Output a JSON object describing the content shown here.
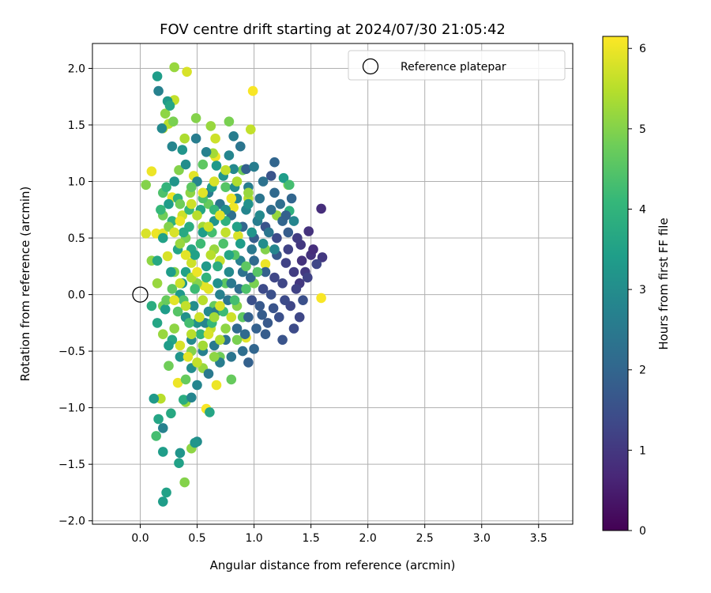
{
  "chart_data": {
    "type": "scatter",
    "title": "FOV centre drift starting at 2024/07/30 21:05:42",
    "xlabel": "Angular distance from reference (arcmin)",
    "ylabel": "Rotation from reference (arcmin)",
    "xlim": [
      -0.42,
      3.8
    ],
    "ylim": [
      -2.03,
      2.22
    ],
    "xticks": [
      0.0,
      0.5,
      1.0,
      1.5,
      2.0,
      2.5,
      3.0,
      3.5
    ],
    "xtick_labels": [
      "0.0",
      "0.5",
      "1.0",
      "1.5",
      "2.0",
      "2.5",
      "3.0",
      "3.5"
    ],
    "yticks": [
      -2.0,
      -1.5,
      -1.0,
      -0.5,
      0.0,
      0.5,
      1.0,
      1.5,
      2.0
    ],
    "ytick_labels": [
      "−2.0",
      "−1.5",
      "−1.0",
      "−0.5",
      "0.0",
      "0.5",
      "1.0",
      "1.5",
      "2.0"
    ],
    "grid": true,
    "legend": {
      "position": "top-right",
      "entries": [
        "Reference platepar"
      ]
    },
    "reference_point": {
      "x": 0.0,
      "y": 0.0
    },
    "colorbar": {
      "label": "Hours from first FF file",
      "range": [
        0,
        6.15
      ],
      "ticks": [
        0,
        1,
        2,
        3,
        4,
        5,
        6
      ],
      "tick_labels": [
        "0",
        "1",
        "2",
        "3",
        "4",
        "5",
        "6"
      ],
      "colormap": "viridis"
    },
    "points": [
      [
        1.59,
        -0.03,
        6.1
      ],
      [
        0.99,
        1.8,
        6.1
      ],
      [
        0.1,
        1.09,
        6.0
      ],
      [
        0.05,
        0.54,
        5.8
      ],
      [
        0.14,
        0.54,
        6.0
      ],
      [
        0.2,
        0.54,
        5.9
      ],
      [
        0.58,
        -1.01,
        6.1
      ],
      [
        0.67,
        -0.8,
        6.0
      ],
      [
        0.33,
        -0.78,
        6.0
      ],
      [
        0.93,
        -0.38,
        5.9
      ],
      [
        1.1,
        0.27,
        6.0
      ],
      [
        0.4,
        -0.2,
        6.0
      ],
      [
        0.56,
        0.08,
        5.9
      ],
      [
        0.7,
        0.3,
        5.6
      ],
      [
        0.86,
        0.52,
        5.8
      ],
      [
        0.82,
        0.77,
        6.0
      ],
      [
        0.28,
        0.86,
        6.0
      ],
      [
        0.47,
        1.05,
        5.9
      ],
      [
        0.66,
        1.22,
        6.0
      ],
      [
        0.37,
        0.7,
        5.7
      ],
      [
        0.24,
        0.34,
        5.8
      ],
      [
        0.45,
        0.28,
        5.7
      ],
      [
        0.75,
        0.55,
        5.6
      ],
      [
        0.95,
        0.85,
        5.5
      ],
      [
        0.35,
        -0.45,
        5.8
      ],
      [
        0.62,
        -0.3,
        5.6
      ],
      [
        0.2,
        1.47,
        5.6
      ],
      [
        0.25,
        1.51,
        5.5
      ],
      [
        0.41,
        1.97,
        5.8
      ],
      [
        0.3,
        1.72,
        5.6
      ],
      [
        0.3,
        2.01,
        5.2
      ],
      [
        0.22,
        1.6,
        5.1
      ],
      [
        0.29,
        1.53,
        4.9
      ],
      [
        0.49,
        1.56,
        5.0
      ],
      [
        0.62,
        1.49,
        5.2
      ],
      [
        0.66,
        1.38,
        5.7
      ],
      [
        0.97,
        1.46,
        5.6
      ],
      [
        0.78,
        1.53,
        4.9
      ],
      [
        0.64,
        1.25,
        5.3
      ],
      [
        0.39,
        1.38,
        5.4
      ],
      [
        0.34,
        1.1,
        5.0
      ],
      [
        0.44,
        0.9,
        5.1
      ],
      [
        0.55,
        0.6,
        5.3
      ],
      [
        0.65,
        0.4,
        5.2
      ],
      [
        0.5,
        0.1,
        5.0
      ],
      [
        0.3,
        0.2,
        5.0
      ],
      [
        0.15,
        0.1,
        5.2
      ],
      [
        0.2,
        -0.1,
        4.9
      ],
      [
        0.3,
        -0.3,
        5.1
      ],
      [
        0.45,
        -0.5,
        5.0
      ],
      [
        0.55,
        -0.65,
        5.2
      ],
      [
        0.7,
        -0.55,
        4.8
      ],
      [
        0.8,
        -0.75,
        4.7
      ],
      [
        0.2,
        -0.35,
        5.2
      ],
      [
        0.4,
        -0.95,
        5.2
      ],
      [
        0.18,
        -0.92,
        5.5
      ],
      [
        0.25,
        -0.63,
        4.8
      ],
      [
        0.39,
        -1.66,
        5.0
      ],
      [
        0.45,
        -1.36,
        5.1
      ],
      [
        0.85,
        -0.1,
        5.0
      ],
      [
        1.0,
        0.1,
        4.9
      ],
      [
        1.1,
        0.4,
        5.0
      ],
      [
        1.2,
        0.7,
        5.2
      ],
      [
        1.3,
        0.97,
        4.9
      ],
      [
        0.9,
        1.1,
        4.8
      ],
      [
        0.6,
        0.8,
        4.7
      ],
      [
        0.4,
        0.5,
        4.9
      ],
      [
        0.2,
        0.7,
        4.8
      ],
      [
        0.1,
        0.3,
        5.1
      ],
      [
        0.65,
        -0.1,
        4.7
      ],
      [
        0.75,
        0.1,
        4.6
      ],
      [
        0.05,
        0.97,
        5.0
      ],
      [
        0.9,
        -0.2,
        4.6
      ],
      [
        0.4,
        -0.75,
        4.7
      ],
      [
        0.75,
        0.95,
        4.5
      ],
      [
        0.55,
        1.15,
        4.6
      ],
      [
        0.2,
        0.9,
        4.4
      ],
      [
        0.28,
        -0.4,
        3.6
      ],
      [
        0.22,
        -0.13,
        3.4
      ],
      [
        0.5,
        -1.3,
        3.0
      ],
      [
        0.35,
        -1.4,
        3.2
      ],
      [
        0.2,
        -1.39,
        3.4
      ],
      [
        0.2,
        -1.83,
        3.4
      ],
      [
        0.23,
        -1.75,
        3.5
      ],
      [
        0.16,
        -1.1,
        3.6
      ],
      [
        0.27,
        -1.05,
        3.7
      ],
      [
        0.38,
        -0.93,
        3.8
      ],
      [
        0.61,
        -1.04,
        3.6
      ],
      [
        0.12,
        -0.92,
        3.3
      ],
      [
        0.14,
        -1.25,
        4.3
      ],
      [
        0.34,
        -1.49,
        3.5
      ],
      [
        0.48,
        -1.31,
        3.2
      ],
      [
        0.45,
        -0.91,
        2.8
      ],
      [
        0.2,
        -1.18,
        2.7
      ],
      [
        0.24,
        1.71,
        3.3
      ],
      [
        0.16,
        1.8,
        2.7
      ],
      [
        0.19,
        1.47,
        2.9
      ],
      [
        0.26,
        1.67,
        3.6
      ],
      [
        0.28,
        1.31,
        2.8
      ],
      [
        0.15,
        1.93,
        3.4
      ],
      [
        0.37,
        1.28,
        3.2
      ],
      [
        0.49,
        1.38,
        2.6
      ],
      [
        0.58,
        1.26,
        2.7
      ],
      [
        0.67,
        1.14,
        3.3
      ],
      [
        0.78,
        1.23,
        2.8
      ],
      [
        0.82,
        1.11,
        2.9
      ],
      [
        0.88,
        1.31,
        2.4
      ],
      [
        0.82,
        1.4,
        2.6
      ],
      [
        0.93,
        1.11,
        1.9
      ],
      [
        1.0,
        1.13,
        2.6
      ],
      [
        1.18,
        1.17,
        2.0
      ],
      [
        1.15,
        1.05,
        1.6
      ],
      [
        1.26,
        1.03,
        3.4
      ],
      [
        1.31,
        0.97,
        4.3
      ],
      [
        1.31,
        0.74,
        3.9
      ],
      [
        1.35,
        0.65,
        2.8
      ],
      [
        1.41,
        0.44,
        1.0
      ],
      [
        1.5,
        0.35,
        0.9
      ],
      [
        1.6,
        0.33,
        1.0
      ],
      [
        1.55,
        0.27,
        1.3
      ],
      [
        1.59,
        0.76,
        0.8
      ],
      [
        1.48,
        0.56,
        0.9
      ],
      [
        1.4,
        0.1,
        1.0
      ],
      [
        1.43,
        -0.05,
        1.5
      ],
      [
        1.4,
        -0.2,
        1.3
      ],
      [
        1.35,
        -0.3,
        1.4
      ],
      [
        1.25,
        -0.4,
        1.6
      ],
      [
        1.1,
        -0.35,
        1.8
      ],
      [
        1.0,
        -0.48,
        2.0
      ],
      [
        0.95,
        -0.6,
        1.9
      ],
      [
        0.9,
        -0.5,
        2.2
      ],
      [
        0.8,
        -0.55,
        2.4
      ],
      [
        0.7,
        -0.6,
        2.6
      ],
      [
        0.6,
        -0.7,
        2.5
      ],
      [
        0.5,
        -0.8,
        2.8
      ],
      [
        0.45,
        -0.65,
        3.0
      ],
      [
        0.35,
        -0.55,
        3.2
      ],
      [
        0.25,
        -0.45,
        3.4
      ],
      [
        0.15,
        -0.25,
        3.6
      ],
      [
        0.1,
        -0.1,
        3.8
      ],
      [
        0.15,
        0.3,
        3.7
      ],
      [
        0.2,
        0.5,
        3.5
      ],
      [
        0.25,
        0.8,
        3.4
      ],
      [
        0.3,
        1.0,
        3.2
      ],
      [
        0.4,
        1.15,
        3.0
      ],
      [
        0.5,
        1.0,
        2.8
      ],
      [
        0.6,
        0.9,
        2.6
      ],
      [
        0.7,
        0.8,
        2.4
      ],
      [
        0.8,
        0.7,
        2.2
      ],
      [
        0.9,
        0.6,
        2.0
      ],
      [
        1.0,
        0.5,
        1.8
      ],
      [
        1.1,
        0.6,
        1.6
      ],
      [
        1.2,
        0.5,
        1.4
      ],
      [
        1.3,
        0.4,
        1.2
      ],
      [
        1.35,
        0.2,
        1.1
      ],
      [
        1.25,
        0.1,
        1.3
      ],
      [
        1.15,
        0.0,
        1.5
      ],
      [
        1.05,
        -0.1,
        1.7
      ],
      [
        0.95,
        -0.2,
        1.9
      ],
      [
        0.85,
        -0.3,
        2.1
      ],
      [
        0.75,
        -0.4,
        2.3
      ],
      [
        0.65,
        -0.45,
        2.5
      ],
      [
        0.55,
        -0.5,
        2.7
      ],
      [
        0.45,
        -0.4,
        2.9
      ],
      [
        0.4,
        -0.2,
        3.1
      ],
      [
        0.35,
        0.0,
        3.3
      ],
      [
        0.4,
        0.2,
        3.5
      ],
      [
        0.45,
        0.4,
        3.6
      ],
      [
        0.55,
        0.55,
        3.4
      ],
      [
        0.65,
        0.65,
        3.2
      ],
      [
        0.75,
        0.75,
        3.0
      ],
      [
        0.85,
        0.85,
        2.8
      ],
      [
        0.95,
        0.95,
        2.6
      ],
      [
        1.05,
        0.85,
        2.4
      ],
      [
        1.15,
        0.75,
        2.2
      ],
      [
        1.25,
        0.65,
        2.0
      ],
      [
        1.3,
        0.55,
        1.8
      ],
      [
        1.2,
        0.35,
        1.7
      ],
      [
        1.1,
        0.2,
        1.9
      ],
      [
        1.0,
        0.3,
        2.1
      ],
      [
        0.9,
        0.2,
        2.3
      ],
      [
        0.8,
        0.1,
        2.5
      ],
      [
        0.7,
        0.0,
        2.7
      ],
      [
        0.6,
        -0.15,
        2.9
      ],
      [
        0.5,
        -0.25,
        3.1
      ],
      [
        1.45,
        0.2,
        1.0
      ],
      [
        1.38,
        0.5,
        1.1
      ],
      [
        1.28,
        0.28,
        1.2
      ],
      [
        1.18,
        0.15,
        1.3
      ],
      [
        1.08,
        0.05,
        1.4
      ],
      [
        0.98,
        -0.05,
        1.5
      ],
      [
        1.22,
        -0.2,
        1.5
      ],
      [
        1.12,
        -0.25,
        1.7
      ],
      [
        1.02,
        -0.3,
        1.9
      ],
      [
        0.92,
        -0.35,
        2.1
      ],
      [
        1.32,
        -0.1,
        1.3
      ],
      [
        1.42,
        0.3,
        0.9
      ],
      [
        1.52,
        0.4,
        0.8
      ],
      [
        1.47,
        0.15,
        1.2
      ],
      [
        1.37,
        0.05,
        1.2
      ],
      [
        1.27,
        -0.05,
        1.4
      ],
      [
        1.17,
        -0.12,
        1.6
      ],
      [
        1.07,
        -0.18,
        1.8
      ],
      [
        0.97,
        0.15,
        2.0
      ],
      [
        0.87,
        0.05,
        2.2
      ],
      [
        0.77,
        -0.05,
        2.4
      ],
      [
        0.67,
        -0.15,
        2.6
      ],
      [
        0.57,
        -0.25,
        2.8
      ],
      [
        0.47,
        -0.1,
        3.0
      ],
      [
        0.37,
        0.1,
        3.2
      ],
      [
        0.27,
        0.2,
        3.4
      ],
      [
        0.33,
        0.4,
        3.6
      ],
      [
        0.43,
        0.6,
        3.8
      ],
      [
        0.53,
        0.75,
        3.6
      ],
      [
        0.63,
        0.95,
        3.4
      ],
      [
        0.73,
        1.05,
        3.2
      ],
      [
        0.83,
        0.95,
        3.0
      ],
      [
        0.93,
        0.75,
        2.8
      ],
      [
        1.03,
        0.65,
        2.6
      ],
      [
        1.13,
        0.55,
        2.4
      ],
      [
        1.23,
        0.8,
        2.2
      ],
      [
        1.33,
        0.85,
        2.0
      ],
      [
        1.28,
        0.7,
        1.9
      ],
      [
        1.18,
        0.9,
        2.1
      ],
      [
        1.08,
        1.0,
        2.3
      ],
      [
        0.98,
        0.4,
        2.5
      ],
      [
        0.88,
        0.3,
        2.7
      ],
      [
        0.78,
        0.2,
        2.9
      ],
      [
        0.68,
        0.1,
        3.1
      ],
      [
        0.58,
        0.25,
        3.3
      ],
      [
        0.48,
        0.35,
        3.5
      ],
      [
        0.38,
        0.55,
        3.7
      ],
      [
        0.28,
        0.65,
        3.9
      ],
      [
        0.18,
        0.75,
        4.1
      ],
      [
        0.23,
        0.95,
        4.0
      ],
      [
        0.33,
        0.85,
        3.9
      ],
      [
        0.43,
        0.75,
        4.1
      ],
      [
        0.53,
        0.45,
        4.2
      ],
      [
        0.63,
        0.55,
        4.3
      ],
      [
        0.73,
        0.45,
        4.4
      ],
      [
        0.83,
        0.35,
        4.5
      ],
      [
        0.93,
        0.25,
        4.6
      ],
      [
        1.03,
        0.2,
        4.5
      ],
      [
        0.93,
        0.05,
        4.4
      ],
      [
        0.83,
        -0.05,
        4.3
      ],
      [
        0.73,
        -0.15,
        4.2
      ],
      [
        0.63,
        -0.25,
        4.1
      ],
      [
        0.53,
        -0.35,
        4.0
      ],
      [
        0.43,
        -0.25,
        4.3
      ],
      [
        0.33,
        -0.15,
        4.5
      ],
      [
        0.23,
        -0.05,
        4.7
      ],
      [
        0.28,
        0.05,
        4.6
      ],
      [
        0.38,
        -0.05,
        4.4
      ],
      [
        0.48,
        0.05,
        4.2
      ],
      [
        0.58,
        0.15,
        4.0
      ],
      [
        0.68,
        0.25,
        3.8
      ],
      [
        0.78,
        0.35,
        3.6
      ],
      [
        0.88,
        0.45,
        3.4
      ],
      [
        0.98,
        0.55,
        3.2
      ],
      [
        1.08,
        0.45,
        3.0
      ],
      [
        1.18,
        0.4,
        2.8
      ],
      [
        1.05,
        0.7,
        2.9
      ],
      [
        0.95,
        0.8,
        3.1
      ],
      [
        0.85,
        0.6,
        3.5
      ],
      [
        0.75,
        0.65,
        3.9
      ],
      [
        0.65,
        0.75,
        4.1
      ],
      [
        0.55,
        0.85,
        4.4
      ],
      [
        0.45,
        0.95,
        4.6
      ],
      [
        0.35,
        0.8,
        4.8
      ],
      [
        0.25,
        0.6,
        5.0
      ],
      [
        0.35,
        0.45,
        5.2
      ],
      [
        0.45,
        0.15,
        5.4
      ],
      [
        0.55,
        -0.05,
        5.5
      ],
      [
        0.65,
        -0.2,
        5.3
      ],
      [
        0.75,
        -0.3,
        5.1
      ],
      [
        0.85,
        -0.4,
        4.9
      ],
      [
        0.8,
        -0.2,
        5.7
      ],
      [
        0.7,
        -0.1,
        5.8
      ],
      [
        0.6,
        0.05,
        5.9
      ],
      [
        0.5,
        0.2,
        6.0
      ],
      [
        0.4,
        0.35,
        5.9
      ],
      [
        0.3,
        0.55,
        5.8
      ],
      [
        0.35,
        0.65,
        6.0
      ],
      [
        0.45,
        0.8,
        5.7
      ],
      [
        0.55,
        0.9,
        5.9
      ],
      [
        0.65,
        1.0,
        5.8
      ],
      [
        0.75,
        1.1,
        5.6
      ],
      [
        0.85,
        1.0,
        5.4
      ],
      [
        0.95,
        0.9,
        5.2
      ],
      [
        0.5,
        0.7,
        5.5
      ],
      [
        0.6,
        0.6,
        5.7
      ],
      [
        0.7,
        0.7,
        5.9
      ],
      [
        0.8,
        0.85,
        6.0
      ],
      [
        0.4,
        -0.1,
        5.6
      ],
      [
        0.3,
        -0.05,
        5.9
      ],
      [
        0.35,
        0.1,
        5.7
      ],
      [
        0.45,
        -0.35,
        5.5
      ],
      [
        0.55,
        -0.45,
        5.3
      ],
      [
        0.65,
        -0.55,
        5.1
      ],
      [
        0.7,
        -0.4,
        5.4
      ],
      [
        0.6,
        -0.35,
        5.8
      ],
      [
        0.5,
        -0.6,
        5.6
      ],
      [
        0.42,
        -0.55,
        5.9
      ],
      [
        0.52,
        -0.2,
        5.7
      ],
      [
        0.62,
        0.35,
        5.5
      ]
    ]
  }
}
